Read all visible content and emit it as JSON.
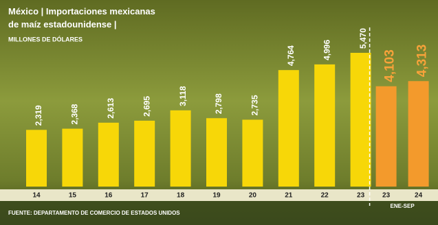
{
  "chart_data": {
    "type": "bar",
    "title": "México | Importaciones mexicanas de maíz estadounidense |",
    "unit": "MILLONES DE DÓLARES",
    "categories": [
      "14",
      "15",
      "16",
      "17",
      "18",
      "19",
      "20",
      "21",
      "22",
      "23",
      "23",
      "24"
    ],
    "values": [
      2319,
      2368,
      2613,
      2695,
      3118,
      2798,
      2735,
      4764,
      4996,
      5470,
      4103,
      4313
    ],
    "value_labels": [
      "2,319",
      "2,368",
      "2,613",
      "2,695",
      "3,118",
      "2,798",
      "2,735",
      "4,764",
      "4,996",
      "5,470",
      "4,103",
      "4,313"
    ],
    "colors": [
      "#f7d708",
      "#f7d708",
      "#f7d708",
      "#f7d708",
      "#f7d708",
      "#f7d708",
      "#f7d708",
      "#f7d708",
      "#f7d708",
      "#f7d708",
      "#f39a2c",
      "#f39a2c"
    ],
    "period_label": "ENE-SEP",
    "source": "FUENTE: DEPARTAMENTO DE COMERCIO DE ESTADOS UNIDOS"
  }
}
